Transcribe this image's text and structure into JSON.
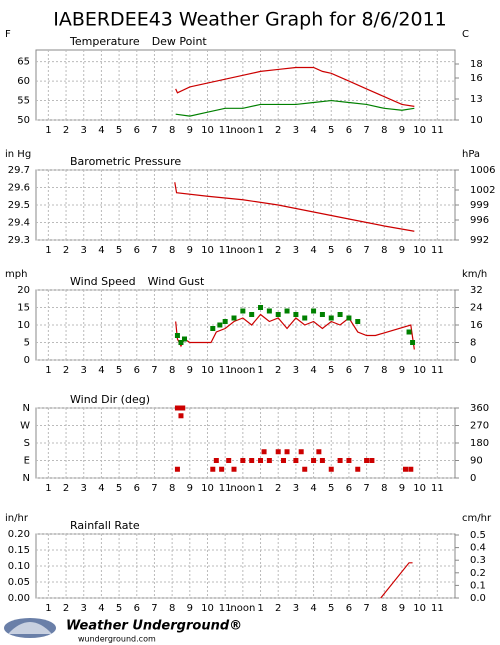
{
  "header": {
    "title": "IABERDEE43 Weather Graph for 8/6/2011"
  },
  "footer": {
    "logo": "Weather Underground®",
    "url": "wunderground.com"
  },
  "chart_data": [
    {
      "type": "line",
      "y_label": "F",
      "y2_label": "C",
      "xlim": [
        0.3,
        24
      ],
      "ylim": [
        50,
        68
      ],
      "yticks": [
        50,
        55,
        60,
        65
      ],
      "y2lim": [
        10,
        20
      ],
      "y2ticks": [
        10,
        13,
        16,
        18
      ],
      "xticks": [
        1,
        2,
        3,
        4,
        5,
        6,
        7,
        8,
        9,
        10,
        11,
        {
          "value": 12,
          "label": "noon"
        },
        {
          "value": 13,
          "label": "1"
        },
        {
          "value": 14,
          "label": "2"
        },
        {
          "value": 15,
          "label": "3"
        },
        {
          "value": 16,
          "label": "4"
        },
        {
          "value": 17,
          "label": "5"
        },
        {
          "value": 18,
          "label": "6"
        },
        {
          "value": 19,
          "label": "7"
        },
        {
          "value": 20,
          "label": "8"
        },
        {
          "value": 21,
          "label": "9"
        },
        {
          "value": 22,
          "label": "10"
        },
        {
          "value": 23,
          "label": "11"
        }
      ],
      "series": [
        {
          "name": "Temperature",
          "color": "#cc0000",
          "x": [
            8.2,
            8.3,
            9,
            10,
            11,
            12,
            13,
            14,
            15,
            16,
            16.5,
            17,
            18,
            19,
            20,
            21,
            21.7
          ],
          "values": [
            58,
            57,
            58.5,
            59.5,
            60.5,
            61.5,
            62.5,
            63,
            63.5,
            63.5,
            62.5,
            62,
            60,
            58,
            56,
            54,
            53.5
          ]
        },
        {
          "name": "Dew Point",
          "color": "#008000",
          "x": [
            8.2,
            9,
            10,
            11,
            12,
            13,
            14,
            15,
            16,
            17,
            18,
            19,
            20,
            21,
            21.7
          ],
          "values": [
            51.5,
            51,
            52,
            53,
            53,
            54,
            54,
            54,
            54.5,
            55,
            54.5,
            54,
            53,
            52.5,
            53
          ]
        }
      ]
    },
    {
      "type": "line",
      "y_label": "in Hg",
      "y2_label": "hPa",
      "xlim": [
        0.3,
        24
      ],
      "ylim": [
        29.3,
        29.7
      ],
      "yticks": [
        29.3,
        29.4,
        29.5,
        29.6,
        29.7
      ],
      "y2lim": [
        992,
        1006
      ],
      "y2ticks": [
        992,
        996,
        999,
        1002,
        1006
      ],
      "xticks": [
        1,
        2,
        3,
        4,
        5,
        6,
        7,
        8,
        9,
        10,
        11,
        {
          "value": 12,
          "label": "noon"
        },
        {
          "value": 13,
          "label": "1"
        },
        {
          "value": 14,
          "label": "2"
        },
        {
          "value": 15,
          "label": "3"
        },
        {
          "value": 16,
          "label": "4"
        },
        {
          "value": 17,
          "label": "5"
        },
        {
          "value": 18,
          "label": "6"
        },
        {
          "value": 19,
          "label": "7"
        },
        {
          "value": 20,
          "label": "8"
        },
        {
          "value": 21,
          "label": "9"
        },
        {
          "value": 22,
          "label": "10"
        },
        {
          "value": 23,
          "label": "11"
        }
      ],
      "series": [
        {
          "name": "Barometric Pressure",
          "color": "#cc0000",
          "x": [
            8.15,
            8.25,
            10,
            12,
            14,
            16,
            18,
            20,
            21.7
          ],
          "values": [
            29.63,
            29.57,
            29.55,
            29.53,
            29.5,
            29.46,
            29.42,
            29.38,
            29.35
          ]
        }
      ]
    },
    {
      "type": "line",
      "y_label": "mph",
      "y2_label": "km/h",
      "xlim": [
        0.3,
        24
      ],
      "ylim": [
        0,
        20
      ],
      "yticks": [
        0,
        5,
        10,
        15,
        20
      ],
      "y2lim": [
        0,
        32
      ],
      "y2ticks": [
        0,
        8,
        16,
        24,
        32
      ],
      "xticks": [
        1,
        2,
        3,
        4,
        5,
        6,
        7,
        8,
        9,
        10,
        11,
        {
          "value": 12,
          "label": "noon"
        },
        {
          "value": 13,
          "label": "1"
        },
        {
          "value": 14,
          "label": "2"
        },
        {
          "value": 15,
          "label": "3"
        },
        {
          "value": 16,
          "label": "4"
        },
        {
          "value": 17,
          "label": "5"
        },
        {
          "value": 18,
          "label": "6"
        },
        {
          "value": 19,
          "label": "7"
        },
        {
          "value": 20,
          "label": "8"
        },
        {
          "value": 21,
          "label": "9"
        },
        {
          "value": 22,
          "label": "10"
        },
        {
          "value": 23,
          "label": "11"
        }
      ],
      "series": [
        {
          "name": "Wind Speed",
          "color": "#cc0000",
          "x": [
            8.2,
            8.3,
            8.5,
            8.7,
            9,
            10.2,
            10.5,
            11,
            11.5,
            12,
            12.5,
            13,
            13.5,
            14,
            14.5,
            15,
            15.5,
            16,
            16.5,
            17,
            17.5,
            18,
            18.5,
            19,
            19.5,
            21.5,
            21.7
          ],
          "values": [
            11,
            6,
            4,
            6,
            5,
            5,
            8,
            9,
            11,
            12,
            10,
            13,
            11,
            12,
            9,
            12,
            10,
            11,
            9,
            11,
            10,
            12,
            8,
            7,
            7,
            10,
            3
          ]
        },
        {
          "name": "Wind Gust",
          "color": "#008000",
          "marker": "square",
          "x": [
            8.3,
            8.5,
            8.7,
            10.3,
            10.7,
            11,
            11.5,
            12,
            12.5,
            13,
            13.5,
            14,
            14.5,
            15,
            15.5,
            16,
            16.5,
            17,
            17.5,
            18,
            18.5,
            21.4,
            21.6
          ],
          "values": [
            7,
            5,
            6,
            9,
            10,
            11,
            12,
            14,
            13,
            15,
            14,
            13,
            14,
            13,
            12,
            14,
            13,
            12,
            13,
            12,
            11,
            8,
            5
          ]
        }
      ]
    },
    {
      "type": "scatter",
      "y2lim": [
        0,
        360
      ],
      "ylim": [
        0,
        360
      ],
      "yticks": [
        {
          "value": 0,
          "label": "N"
        },
        {
          "value": 90,
          "label": "E"
        },
        {
          "value": 180,
          "label": "S"
        },
        {
          "value": 270,
          "label": "W"
        },
        {
          "value": 360,
          "label": "N"
        }
      ],
      "y2ticks": [
        0,
        90,
        180,
        270,
        360
      ],
      "xlim": [
        0.3,
        24
      ],
      "xticks": [
        1,
        2,
        3,
        4,
        5,
        6,
        7,
        8,
        9,
        10,
        11,
        {
          "value": 12,
          "label": "noon"
        },
        {
          "value": 13,
          "label": "1"
        },
        {
          "value": 14,
          "label": "2"
        },
        {
          "value": 15,
          "label": "3"
        },
        {
          "value": 16,
          "label": "4"
        },
        {
          "value": 17,
          "label": "5"
        },
        {
          "value": 18,
          "label": "6"
        },
        {
          "value": 19,
          "label": "7"
        },
        {
          "value": 20,
          "label": "8"
        },
        {
          "value": 21,
          "label": "9"
        },
        {
          "value": 22,
          "label": "10"
        },
        {
          "value": 23,
          "label": "11"
        }
      ],
      "series": [
        {
          "name": "Wind Dir (deg)",
          "color": "#cc0000",
          "x": [
            8.3,
            8.4,
            8.5,
            8.6,
            8.3,
            8.5,
            10.3,
            10.5,
            10.8,
            11.2,
            11.5,
            12,
            12.5,
            13,
            13.2,
            13.5,
            14,
            14.3,
            14.5,
            15,
            15.3,
            15.5,
            16,
            16.3,
            16.5,
            17,
            17.5,
            18,
            18.5,
            19,
            19.3,
            21.2,
            21.5
          ],
          "values": [
            360,
            360,
            360,
            360,
            45,
            320,
            45,
            90,
            45,
            90,
            45,
            90,
            90,
            90,
            135,
            90,
            135,
            90,
            135,
            90,
            135,
            45,
            90,
            135,
            90,
            45,
            90,
            90,
            45,
            90,
            90,
            45,
            45
          ]
        }
      ]
    },
    {
      "type": "line",
      "y_label": "in/hr",
      "y2_label": "cm/hr",
      "xlim": [
        0.3,
        24
      ],
      "ylim": [
        0,
        0.2
      ],
      "yticks": [
        {
          "value": 0,
          "label": "0.00"
        },
        {
          "value": 0.05,
          "label": "0.05"
        },
        {
          "value": 0.1,
          "label": "0.10"
        },
        {
          "value": 0.15,
          "label": "0.15"
        },
        {
          "value": 0.2,
          "label": "0.20"
        }
      ],
      "y2lim": [
        0,
        0.508
      ],
      "y2ticks": [
        {
          "value": 0,
          "label": "0.0"
        },
        0.1,
        0.2,
        0.3,
        0.4,
        0.5
      ],
      "xticks": [
        1,
        2,
        3,
        4,
        5,
        6,
        7,
        8,
        9,
        10,
        11,
        {
          "value": 12,
          "label": "noon"
        },
        {
          "value": 13,
          "label": "1"
        },
        {
          "value": 14,
          "label": "2"
        },
        {
          "value": 15,
          "label": "3"
        },
        {
          "value": 16,
          "label": "4"
        },
        {
          "value": 17,
          "label": "5"
        },
        {
          "value": 18,
          "label": "6"
        },
        {
          "value": 19,
          "label": "7"
        },
        {
          "value": 20,
          "label": "8"
        },
        {
          "value": 21,
          "label": "9"
        },
        {
          "value": 22,
          "label": "10"
        },
        {
          "value": 23,
          "label": "11"
        }
      ],
      "series": [
        {
          "name": "Rainfall Rate",
          "color": "#cc0000",
          "x": [
            19.8,
            21.4,
            21.6
          ],
          "values": [
            0,
            0.11,
            0.11
          ]
        }
      ]
    }
  ]
}
